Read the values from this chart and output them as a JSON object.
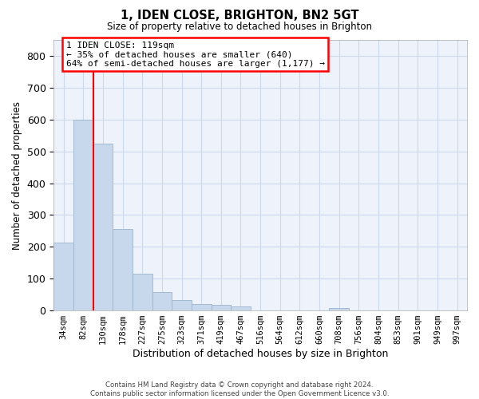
{
  "title_line1": "1, IDEN CLOSE, BRIGHTON, BN2 5GT",
  "title_line2": "Size of property relative to detached houses in Brighton",
  "xlabel": "Distribution of detached houses by size in Brighton",
  "ylabel": "Number of detached properties",
  "bar_color": "#c8d8ec",
  "bar_edge_color": "#9ab4cc",
  "categories": [
    "34sqm",
    "82sqm",
    "130sqm",
    "178sqm",
    "227sqm",
    "275sqm",
    "323sqm",
    "371sqm",
    "419sqm",
    "467sqm",
    "516sqm",
    "564sqm",
    "612sqm",
    "660sqm",
    "708sqm",
    "756sqm",
    "804sqm",
    "853sqm",
    "901sqm",
    "949sqm",
    "997sqm"
  ],
  "values": [
    213,
    600,
    525,
    255,
    115,
    57,
    32,
    20,
    17,
    12,
    0,
    0,
    0,
    0,
    8,
    0,
    0,
    0,
    0,
    0,
    0
  ],
  "ylim": [
    0,
    850
  ],
  "yticks": [
    0,
    100,
    200,
    300,
    400,
    500,
    600,
    700,
    800
  ],
  "red_line_x": 1.5,
  "annotation_text": "1 IDEN CLOSE: 119sqm\n← 35% of detached houses are smaller (640)\n64% of semi-detached houses are larger (1,177) →",
  "footer_text": "Contains HM Land Registry data © Crown copyright and database right 2024.\nContains public sector information licensed under the Open Government Licence v3.0.",
  "grid_color": "#ccd8ec",
  "background_color": "#eef2fa"
}
